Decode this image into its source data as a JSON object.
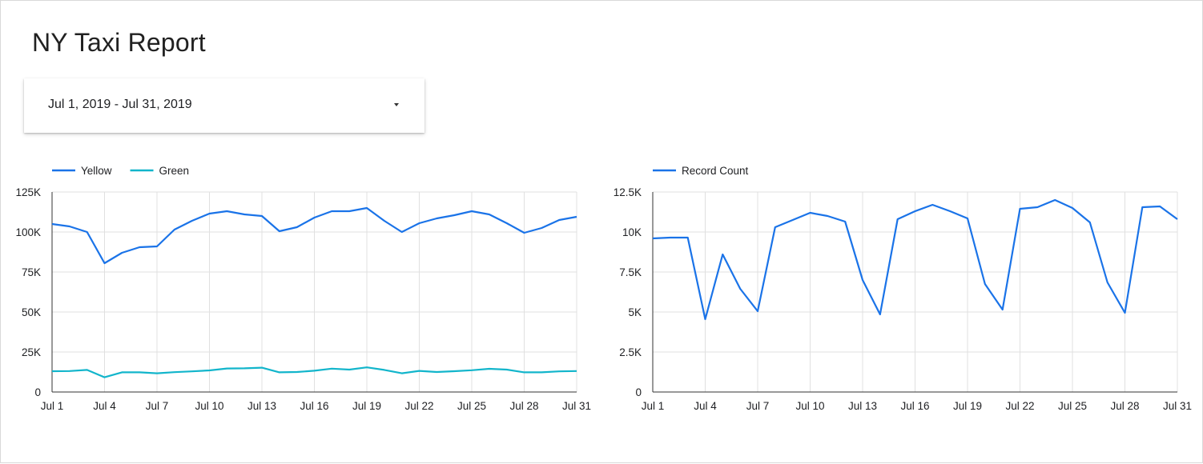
{
  "report": {
    "title": "NY Taxi Report"
  },
  "date_range": {
    "label": "Jul 1, 2019 - Jul 31, 2019"
  },
  "chart_data": [
    {
      "type": "line",
      "title": "",
      "xlabel": "",
      "ylabel": "",
      "ylim": [
        0,
        125000
      ],
      "yticks": [
        0,
        25000,
        50000,
        75000,
        100000,
        125000
      ],
      "ytick_labels": [
        "0",
        "25K",
        "50K",
        "75K",
        "100K",
        "125K"
      ],
      "xtick_labels": [
        "Jul 1",
        "Jul 4",
        "Jul 7",
        "Jul 10",
        "Jul 13",
        "Jul 16",
        "Jul 19",
        "Jul 22",
        "Jul 25",
        "Jul 28",
        "Jul 31"
      ],
      "xtick_days": [
        1,
        4,
        7,
        10,
        13,
        16,
        19,
        22,
        25,
        28,
        31
      ],
      "x": [
        1,
        2,
        3,
        4,
        5,
        6,
        7,
        8,
        9,
        10,
        11,
        12,
        13,
        14,
        15,
        16,
        17,
        18,
        19,
        20,
        21,
        22,
        23,
        24,
        25,
        26,
        27,
        28,
        29,
        30,
        31
      ],
      "grid": true,
      "legend": "top-left",
      "series": [
        {
          "name": "Yellow",
          "color": "#1a73e8",
          "values": [
            105000,
            103500,
            100000,
            80500,
            87000,
            90500,
            91000,
            101500,
            107000,
            111500,
            113000,
            111000,
            110000,
            100500,
            103000,
            109000,
            113000,
            113000,
            115000,
            107000,
            100000,
            105500,
            108500,
            110500,
            113000,
            111000,
            105500,
            99500,
            102500,
            107500,
            109500
          ]
        },
        {
          "name": "Green",
          "color": "#12b5cb",
          "values": [
            13000,
            13100,
            13800,
            9200,
            12300,
            12300,
            11700,
            12400,
            12900,
            13500,
            14700,
            14800,
            15200,
            12300,
            12500,
            13300,
            14600,
            14000,
            15400,
            13800,
            11700,
            13200,
            12500,
            13000,
            13600,
            14500,
            14000,
            12300,
            12300,
            12900,
            13100
          ]
        }
      ]
    },
    {
      "type": "line",
      "title": "",
      "xlabel": "",
      "ylabel": "",
      "ylim": [
        0,
        12500
      ],
      "yticks": [
        0,
        2500,
        5000,
        7500,
        10000,
        12500
      ],
      "ytick_labels": [
        "0",
        "2.5K",
        "5K",
        "7.5K",
        "10K",
        "12.5K"
      ],
      "xtick_labels": [
        "Jul 1",
        "Jul 4",
        "Jul 7",
        "Jul 10",
        "Jul 13",
        "Jul 16",
        "Jul 19",
        "Jul 22",
        "Jul 25",
        "Jul 28",
        "Jul 31"
      ],
      "xtick_days": [
        1,
        4,
        7,
        10,
        13,
        16,
        19,
        22,
        25,
        28,
        31
      ],
      "x": [
        1,
        2,
        3,
        4,
        5,
        6,
        7,
        8,
        9,
        10,
        11,
        12,
        13,
        14,
        15,
        16,
        17,
        18,
        19,
        20,
        21,
        22,
        23,
        24,
        25,
        26,
        27,
        28,
        29,
        30,
        31
      ],
      "grid": true,
      "legend": "top-left",
      "series": [
        {
          "name": "Record Count",
          "color": "#1a73e8",
          "values": [
            9600,
            9650,
            9650,
            4550,
            8600,
            6450,
            5050,
            10300,
            10750,
            11200,
            11000,
            10650,
            7000,
            4850,
            10800,
            11300,
            11700,
            11300,
            10850,
            6750,
            5150,
            11450,
            11550,
            12000,
            11500,
            10600,
            6850,
            4950,
            11550,
            11600,
            10800
          ]
        }
      ]
    }
  ]
}
